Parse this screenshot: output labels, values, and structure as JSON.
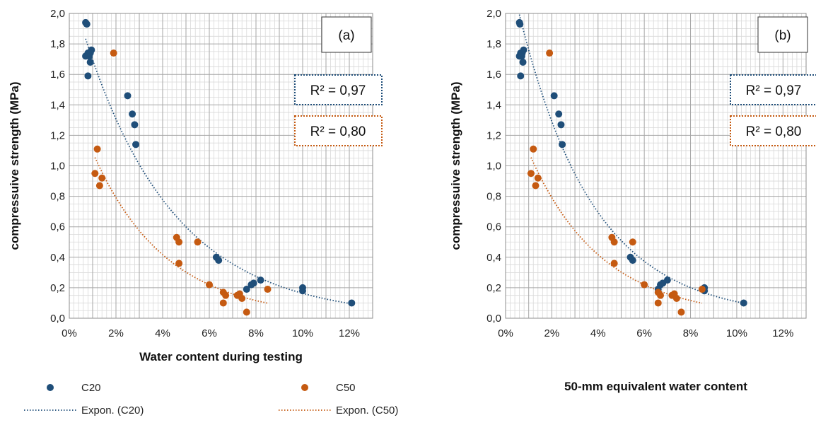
{
  "colors": {
    "c20": "#1f4e79",
    "c50": "#c55a11",
    "grid_major": "#a6a6a6",
    "grid_minor": "#d9d9d9"
  },
  "legend": {
    "items": [
      {
        "label": "C20",
        "kind": "marker",
        "series": "c20"
      },
      {
        "label": "C50",
        "kind": "marker",
        "series": "c50"
      },
      {
        "label": "Expon. (C20)",
        "kind": "line",
        "series": "c20"
      },
      {
        "label": "Expon. (C50)",
        "kind": "line",
        "series": "c50"
      }
    ]
  },
  "chart_data": [
    {
      "type": "scatter",
      "panel_label": "(a)",
      "xlabel": "Water content during testing",
      "ylabel": "compressuive strength (MPa)",
      "xlim": [
        0,
        0.13
      ],
      "ylim": [
        0,
        2.0
      ],
      "x_ticks": [
        "0%",
        "2%",
        "4%",
        "6%",
        "8%",
        "10%",
        "12%"
      ],
      "y_ticks": [
        "0,0",
        "0,2",
        "0,4",
        "0,6",
        "0,8",
        "1,0",
        "1,2",
        "1,4",
        "1,6",
        "1,8",
        "2,0"
      ],
      "grid": true,
      "r2": [
        {
          "text": "R² = 0,97",
          "series": "c20"
        },
        {
          "text": "R² = 0,80",
          "series": "c50"
        }
      ],
      "series": [
        {
          "name": "C20",
          "points": [
            [
              0.007,
              1.94
            ],
            [
              0.0075,
              1.93
            ],
            [
              0.007,
              1.72
            ],
            [
              0.008,
              1.74
            ],
            [
              0.0085,
              1.72
            ],
            [
              0.009,
              1.74
            ],
            [
              0.0095,
              1.76
            ],
            [
              0.009,
              1.68
            ],
            [
              0.008,
              1.59
            ],
            [
              0.025,
              1.46
            ],
            [
              0.027,
              1.34
            ],
            [
              0.028,
              1.27
            ],
            [
              0.0285,
              1.14
            ],
            [
              0.063,
              0.4
            ],
            [
              0.064,
              0.38
            ],
            [
              0.076,
              0.19
            ],
            [
              0.078,
              0.22
            ],
            [
              0.079,
              0.23
            ],
            [
              0.082,
              0.25
            ],
            [
              0.1,
              0.2
            ],
            [
              0.1,
              0.18
            ],
            [
              0.121,
              0.1
            ]
          ]
        },
        {
          "name": "C50",
          "points": [
            [
              0.019,
              1.74
            ],
            [
              0.012,
              1.11
            ],
            [
              0.011,
              0.95
            ],
            [
              0.014,
              0.92
            ],
            [
              0.013,
              0.87
            ],
            [
              0.046,
              0.53
            ],
            [
              0.047,
              0.5
            ],
            [
              0.055,
              0.5
            ],
            [
              0.047,
              0.36
            ],
            [
              0.06,
              0.22
            ],
            [
              0.066,
              0.17
            ],
            [
              0.067,
              0.15
            ],
            [
              0.066,
              0.1
            ],
            [
              0.072,
              0.15
            ],
            [
              0.073,
              0.16
            ],
            [
              0.074,
              0.13
            ],
            [
              0.085,
              0.19
            ],
            [
              0.076,
              0.04
            ]
          ]
        }
      ],
      "trendlines": [
        {
          "name": "Expon. (C20)",
          "type": "exponential",
          "a": 2.2,
          "b": -26.0,
          "x_range": [
            0.007,
            0.121
          ]
        },
        {
          "name": "Expon. (C50)",
          "type": "exponential",
          "a": 1.5,
          "b": -32.0,
          "x_range": [
            0.011,
            0.085
          ]
        }
      ]
    },
    {
      "type": "scatter",
      "panel_label": "(b)",
      "xlabel": "50-mm equivalent water content",
      "ylabel": "compressuive strength (MPa)",
      "xlim": [
        0,
        0.13
      ],
      "ylim": [
        0,
        2.0
      ],
      "x_ticks": [
        "0%",
        "2%",
        "4%",
        "6%",
        "8%",
        "10%",
        "12%"
      ],
      "y_ticks": [
        "0,0",
        "0,2",
        "0,4",
        "0,6",
        "0,8",
        "1,0",
        "1,2",
        "1,4",
        "1,6",
        "1,8",
        "2,0"
      ],
      "grid": true,
      "r2": [
        {
          "text": "R² = 0,97",
          "series": "c20"
        },
        {
          "text": "R² = 0,80",
          "series": "c50"
        }
      ],
      "series": [
        {
          "name": "C20",
          "points": [
            [
              0.006,
              1.94
            ],
            [
              0.0062,
              1.93
            ],
            [
              0.006,
              1.72
            ],
            [
              0.0065,
              1.74
            ],
            [
              0.007,
              1.72
            ],
            [
              0.0072,
              1.74
            ],
            [
              0.0078,
              1.76
            ],
            [
              0.0075,
              1.68
            ],
            [
              0.0065,
              1.59
            ],
            [
              0.021,
              1.46
            ],
            [
              0.023,
              1.34
            ],
            [
              0.024,
              1.27
            ],
            [
              0.0245,
              1.14
            ],
            [
              0.054,
              0.4
            ],
            [
              0.055,
              0.38
            ],
            [
              0.066,
              0.19
            ],
            [
              0.067,
              0.22
            ],
            [
              0.068,
              0.23
            ],
            [
              0.07,
              0.25
            ],
            [
              0.086,
              0.2
            ],
            [
              0.086,
              0.18
            ],
            [
              0.103,
              0.1
            ]
          ]
        },
        {
          "name": "C50",
          "points": [
            [
              0.019,
              1.74
            ],
            [
              0.012,
              1.11
            ],
            [
              0.011,
              0.95
            ],
            [
              0.014,
              0.92
            ],
            [
              0.013,
              0.87
            ],
            [
              0.046,
              0.53
            ],
            [
              0.047,
              0.5
            ],
            [
              0.055,
              0.5
            ],
            [
              0.047,
              0.36
            ],
            [
              0.06,
              0.22
            ],
            [
              0.066,
              0.17
            ],
            [
              0.067,
              0.15
            ],
            [
              0.066,
              0.1
            ],
            [
              0.072,
              0.15
            ],
            [
              0.073,
              0.16
            ],
            [
              0.074,
              0.13
            ],
            [
              0.085,
              0.19
            ],
            [
              0.076,
              0.04
            ]
          ]
        }
      ],
      "trendlines": [
        {
          "name": "Expon. (C20)",
          "type": "exponential",
          "a": 2.4,
          "b": -31.0,
          "x_range": [
            0.006,
            0.103
          ]
        },
        {
          "name": "Expon. (C50)",
          "type": "exponential",
          "a": 1.5,
          "b": -32.0,
          "x_range": [
            0.011,
            0.085
          ]
        }
      ]
    }
  ]
}
